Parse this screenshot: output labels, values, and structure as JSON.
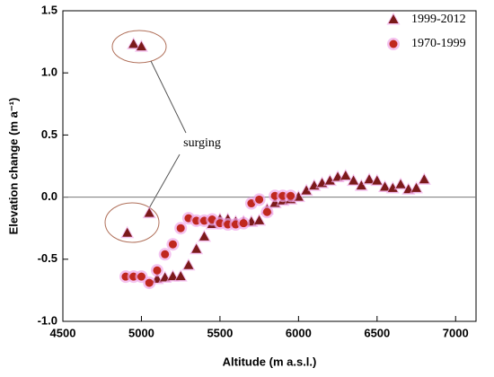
{
  "chart_data": {
    "type": "scatter",
    "xlabel": "Altitude (m a.s.l.)",
    "ylabel": "Elevation change (m a⁻¹)",
    "annotation": "surging",
    "xlim": [
      4500,
      7130
    ],
    "xticks": [
      4500,
      5000,
      5500,
      6000,
      6500,
      7000
    ],
    "ylim": [
      -1.0,
      1.5
    ],
    "yticks": [
      {
        "value": -1.0,
        "label": "-1.0"
      },
      -0.5,
      {
        "value": 0.0,
        "label": "0.0"
      },
      0.5,
      {
        "value": 1.0,
        "label": "1.0"
      },
      1.5
    ],
    "legend": "upper right",
    "series": [
      {
        "name": "1999-2012",
        "color": "#7b1a1a",
        "marker": "triangle",
        "x": [
          4910,
          4950,
          5000,
          5050,
          5100,
          5150,
          5200,
          5250,
          5300,
          5350,
          5400,
          5450,
          5500,
          5550,
          5600,
          5650,
          5700,
          5750,
          5800,
          5850,
          5900,
          5950,
          6000,
          6050,
          6100,
          6150,
          6200,
          6250,
          6300,
          6350,
          6400,
          6450,
          6500,
          6550,
          6600,
          6650,
          6700,
          6750,
          6800
        ],
        "values": [
          -0.29,
          1.23,
          1.21,
          -0.13,
          -0.66,
          -0.65,
          -0.64,
          -0.64,
          -0.55,
          -0.42,
          -0.32,
          -0.22,
          -0.18,
          -0.18,
          -0.2,
          -0.2,
          -0.2,
          -0.19,
          -0.1,
          -0.05,
          -0.03,
          -0.02,
          0.0,
          0.05,
          0.09,
          0.11,
          0.13,
          0.16,
          0.17,
          0.13,
          0.09,
          0.14,
          0.13,
          0.08,
          0.07,
          0.1,
          0.06,
          0.07,
          0.14
        ]
      },
      {
        "name": "1970-1999",
        "color": "#c0281e",
        "marker": "circle",
        "x": [
          4900,
          4950,
          5000,
          5050,
          5100,
          5150,
          5200,
          5250,
          5300,
          5350,
          5400,
          5450,
          5500,
          5550,
          5600,
          5650,
          5700,
          5750,
          5800,
          5850,
          5900,
          5950
        ],
        "values": [
          -0.64,
          -0.64,
          -0.64,
          -0.69,
          -0.59,
          -0.46,
          -0.38,
          -0.25,
          -0.17,
          -0.19,
          -0.19,
          -0.18,
          -0.21,
          -0.22,
          -0.22,
          -0.21,
          -0.05,
          -0.02,
          -0.12,
          0.01,
          0.01,
          0.01
        ]
      }
    ]
  }
}
